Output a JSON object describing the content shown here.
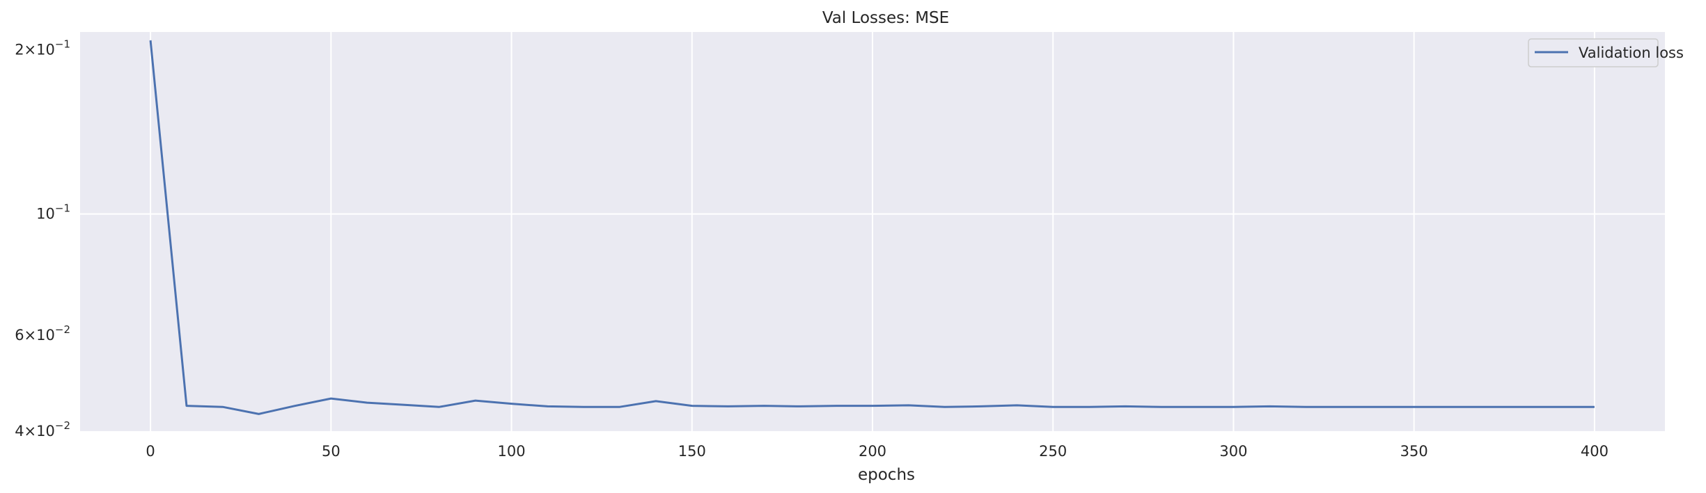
{
  "chart_data": {
    "type": "line",
    "title": "Val Losses:  MSE",
    "xlabel": "epochs",
    "ylabel": "",
    "xlim": [
      -19.5,
      419.5
    ],
    "ylim": [
      0.04,
      0.2155
    ],
    "yscale": "log",
    "grid": true,
    "legend_position": "top-right",
    "background_color": "#eaeaf2",
    "grid_color": "#ffffff",
    "series_color": "#4c72b0",
    "x_ticks": [
      {
        "value": 0,
        "label": "0"
      },
      {
        "value": 50,
        "label": "50"
      },
      {
        "value": 100,
        "label": "100"
      },
      {
        "value": 150,
        "label": "150"
      },
      {
        "value": 200,
        "label": "200"
      },
      {
        "value": 250,
        "label": "250"
      },
      {
        "value": 300,
        "label": "300"
      },
      {
        "value": 350,
        "label": "350"
      },
      {
        "value": 400,
        "label": "400"
      }
    ],
    "y_ticks": [
      {
        "value": 0.2,
        "mantissa": "2",
        "exponent": "−1"
      },
      {
        "value": 0.1,
        "mantissa": "",
        "exponent": "−1"
      },
      {
        "value": 0.06,
        "mantissa": "6",
        "exponent": "−2"
      },
      {
        "value": 0.04,
        "mantissa": "4",
        "exponent": "−2"
      }
    ],
    "series": [
      {
        "name": "Validation loss",
        "x": [
          0,
          10,
          20,
          30,
          40,
          50,
          60,
          70,
          80,
          90,
          100,
          110,
          120,
          130,
          140,
          150,
          160,
          170,
          180,
          190,
          200,
          210,
          220,
          230,
          240,
          250,
          260,
          270,
          280,
          290,
          300,
          310,
          320,
          330,
          340,
          350,
          360,
          370,
          380,
          390,
          400
        ],
        "y": [
          0.208,
          0.0445,
          0.0443,
          0.043,
          0.0445,
          0.0459,
          0.0451,
          0.0447,
          0.0443,
          0.0455,
          0.0449,
          0.0444,
          0.0443,
          0.0443,
          0.0454,
          0.0445,
          0.0444,
          0.0445,
          0.0444,
          0.0445,
          0.0445,
          0.0446,
          0.0443,
          0.0444,
          0.0446,
          0.0443,
          0.0443,
          0.0444,
          0.0443,
          0.0443,
          0.0443,
          0.0444,
          0.0443,
          0.0443,
          0.0443,
          0.0443,
          0.0443,
          0.0443,
          0.0443,
          0.0443,
          0.0443
        ]
      }
    ]
  }
}
